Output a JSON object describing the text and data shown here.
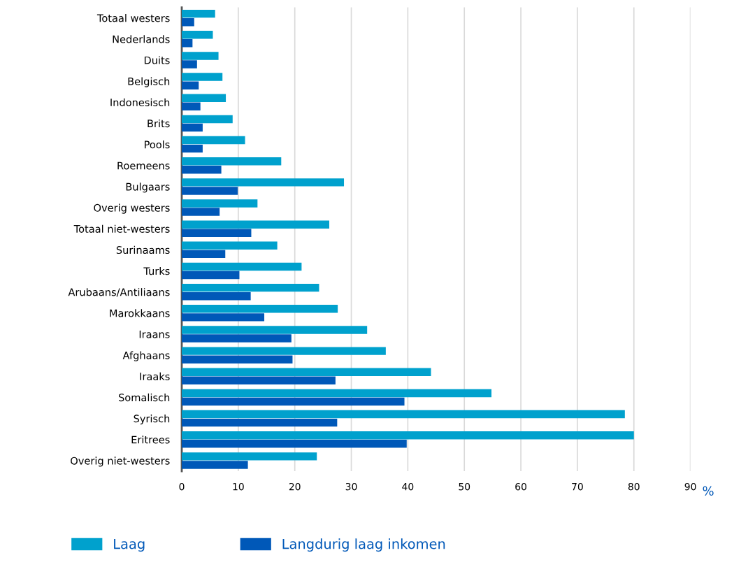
{
  "chart_data": {
    "type": "bar",
    "orientation": "horizontal",
    "xlabel": "%",
    "categories": [
      "Totaal westers",
      "Nederlands",
      "Duits",
      "Belgisch",
      "Indonesisch",
      "Brits",
      "Pools",
      "Roemeens",
      "Bulgaars",
      "Overig westers",
      "Totaal niet-westers",
      "Surinaams",
      "Turks",
      "Arubaans/Antiliaans",
      "Marokkaans",
      "Iraans",
      "Afghaans",
      "Iraaks",
      "Somalisch",
      "Syrisch",
      "Eritrees",
      "Overig niet-westers"
    ],
    "series": [
      {
        "name": "Laag",
        "color": "#00a1cd",
        "values": [
          5.9,
          5.5,
          6.5,
          7.2,
          7.8,
          9.0,
          11.2,
          17.6,
          28.7,
          13.4,
          26.1,
          16.9,
          21.2,
          24.3,
          27.6,
          32.8,
          36.1,
          44.1,
          54.8,
          78.4,
          80.0,
          23.9
        ]
      },
      {
        "name": "Langdurig laag inkomen",
        "color": "#0058b8",
        "values": [
          2.2,
          1.9,
          2.7,
          3.0,
          3.3,
          3.7,
          3.7,
          7.0,
          9.9,
          6.7,
          12.3,
          7.7,
          10.2,
          12.2,
          14.6,
          19.4,
          19.6,
          27.2,
          39.4,
          27.5,
          39.8,
          11.7
        ]
      }
    ],
    "xlim": [
      0,
      90
    ],
    "xticks": [
      0,
      10,
      20,
      30,
      40,
      50,
      60,
      70,
      80,
      90
    ],
    "grid": "x",
    "legend": "bottom left"
  }
}
